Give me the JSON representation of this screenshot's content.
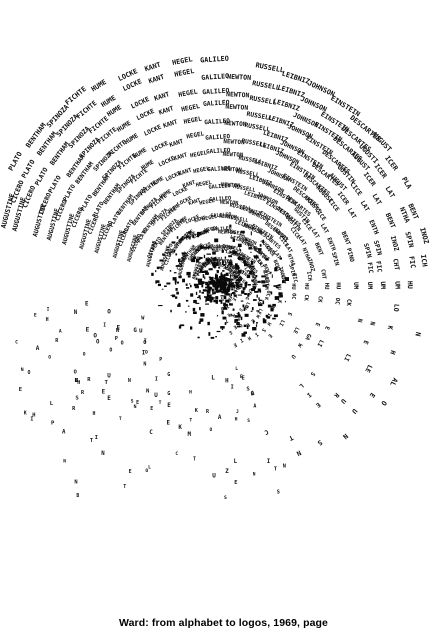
{
  "caption": "Ward: from alphabet to logos, 1969, page",
  "artwork": {
    "description_words": [
      "AUGUSTINE",
      "CICERO",
      "PLATO",
      "BENTHAM",
      "SPINOZA",
      "FICHTE",
      "HUME",
      "LOCKE",
      "KANT",
      "HEGEL",
      "GALILEO",
      "NEWTON",
      "RUSSELL",
      "LEIBNIZ",
      "JOHNSON",
      "EINSTEIN",
      "DESCARTES"
    ],
    "ink_color": "#0a0a0a"
  }
}
